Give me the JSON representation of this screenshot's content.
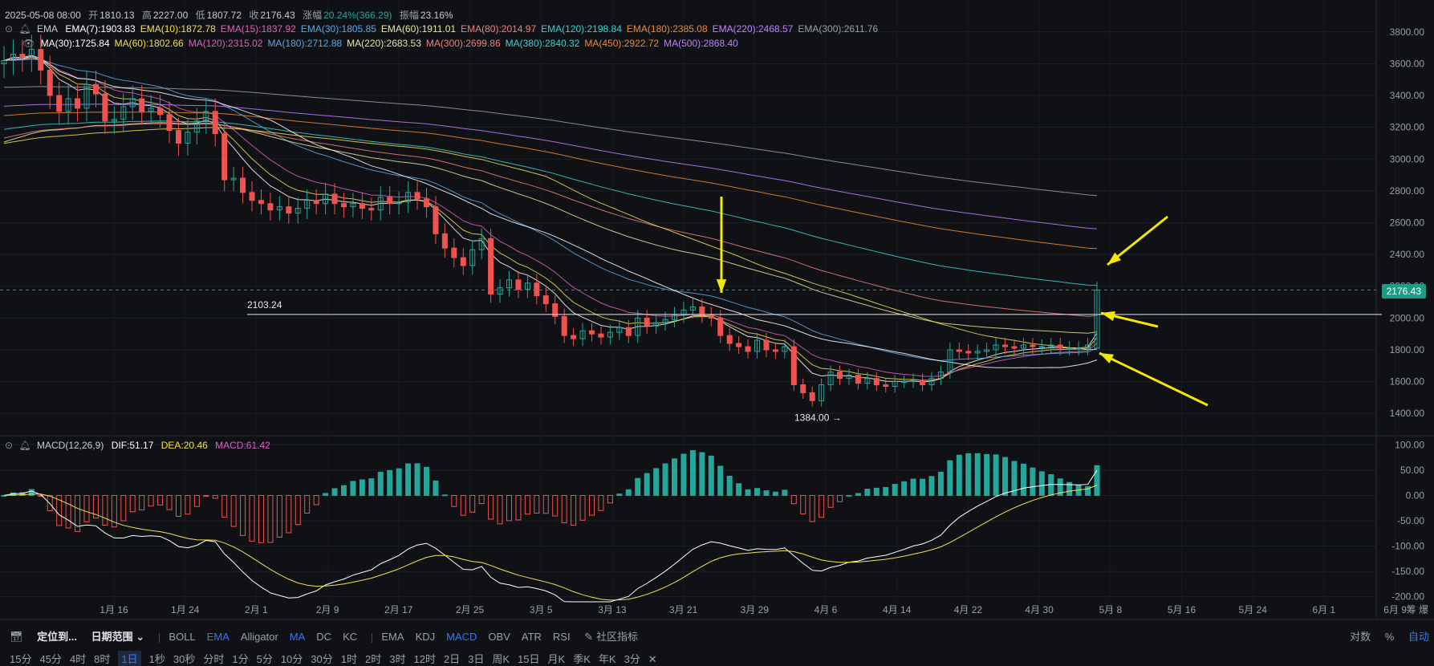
{
  "header": {
    "date": "2025-05-08 08:00",
    "open_label": "开",
    "open": "1810.13",
    "high_label": "高",
    "high": "2227.00",
    "low_label": "低",
    "low": "1807.72",
    "close_label": "收",
    "close": "2176.43",
    "change_label": "涨幅",
    "change": "20.24%(366.29)",
    "amp_label": "振幅",
    "amp": "23.16%"
  },
  "ema_legend": {
    "title": "EMA",
    "items": [
      {
        "label": "EMA(7):1903.83",
        "color": "#ffffff"
      },
      {
        "label": "EMA(10):1872.78",
        "color": "#f5e050"
      },
      {
        "label": "EMA(15):1837.92",
        "color": "#e060c0"
      },
      {
        "label": "EMA(30):1805.85",
        "color": "#5aa8e8"
      },
      {
        "label": "EMA(60):1911.01",
        "color": "#e8e8a0"
      },
      {
        "label": "EMA(80):2014.97",
        "color": "#f08080"
      },
      {
        "label": "EMA(120):2198.84",
        "color": "#40d0d0"
      },
      {
        "label": "EMA(180):2385.08",
        "color": "#f08a30"
      },
      {
        "label": "EMA(220):2468.57",
        "color": "#c080ff"
      },
      {
        "label": "EMA(300):2611.76",
        "color": "#9aa0a8"
      }
    ]
  },
  "ma_legend": {
    "title": "MA",
    "items": [
      {
        "label": "MA(30):1725.84",
        "color": "#ffffff"
      },
      {
        "label": "MA(60):1802.66",
        "color": "#f5e050"
      },
      {
        "label": "MA(120):2315.02",
        "color": "#e060c0"
      },
      {
        "label": "MA(180):2712.88",
        "color": "#5aa8e8"
      },
      {
        "label": "MA(220):2683.53",
        "color": "#e8e8a0"
      },
      {
        "label": "MA(300):2699.86",
        "color": "#f08080"
      },
      {
        "label": "MA(380):2840.32",
        "color": "#40d0d0"
      },
      {
        "label": "MA(450):2922.72",
        "color": "#f08a30"
      },
      {
        "label": "MA(500):2868.40",
        "color": "#c080ff"
      }
    ]
  },
  "macd_legend": {
    "title": "MACD(12,26,9)",
    "dif": "DIF:51.17",
    "dea": "DEA:20.46",
    "macd": "MACD:61.42"
  },
  "price_axis": [
    "3800.00",
    "3600.00",
    "3400.00",
    "3200.00",
    "3000.00",
    "2800.00",
    "2600.00",
    "2400.00",
    "2200.00",
    "2000.00",
    "1800.00",
    "1600.00",
    "1400.00"
  ],
  "macd_axis": [
    "100.00",
    "50.00",
    "0.00",
    "-50.00",
    "-100.00",
    "-150.00",
    "-200.00"
  ],
  "date_axis": [
    "1月 16",
    "1月 24",
    "2月 1",
    "2月 9",
    "2月 17",
    "2月 25",
    "3月 5",
    "3月 13",
    "3月 21",
    "3月 29",
    "4月 6",
    "4月 14",
    "4月 22",
    "4月 30",
    "5月 8",
    "5月 16",
    "5月 24",
    "6月 1",
    "6月 9"
  ],
  "date_axis_right": "筹 爆",
  "current_price": "2176.43",
  "annotations": {
    "level_line": "2103.24",
    "low_marker": "1384.00 →"
  },
  "toolbar1": {
    "locate": "定位到...",
    "date_range": "日期范围",
    "overlays": [
      "BOLL",
      "EMA",
      "Alligator",
      "MA",
      "DC",
      "KC"
    ],
    "overlays_active": [
      "EMA",
      "MA"
    ],
    "indicators": [
      "EMA",
      "KDJ",
      "MACD",
      "OBV",
      "ATR",
      "RSI"
    ],
    "indicators_active": [
      "MACD"
    ],
    "community": "社区指标",
    "right": [
      "对数",
      "%",
      "自动"
    ]
  },
  "toolbar2": {
    "intervals": [
      "15分",
      "45分",
      "4时",
      "8时",
      "1日",
      "1秒",
      "30秒",
      "分时",
      "1分",
      "5分",
      "10分",
      "30分",
      "1时",
      "2时",
      "3时",
      "12时",
      "2日",
      "3日",
      "周K",
      "15日",
      "月K",
      "季K",
      "年K",
      "3分"
    ],
    "active": "1日"
  },
  "chart_data": {
    "type": "candlestick",
    "dates": [
      "1月9",
      "1月10",
      "1月11",
      "1月12",
      "1月13",
      "1月14",
      "1月15",
      "1月16",
      "1月17",
      "1月18",
      "1月19",
      "1月20",
      "1月21",
      "1月22",
      "1月23",
      "1月24",
      "1月25",
      "1月26",
      "1月27",
      "1月28",
      "1月29",
      "1月30",
      "1月31",
      "2月1",
      "2月2",
      "2月3",
      "2月4",
      "2月5",
      "2月6",
      "2月7",
      "2月8",
      "2月9",
      "2月10",
      "2月11",
      "2月12",
      "2月13",
      "2月14",
      "2月15",
      "2月16",
      "2月17",
      "2月18",
      "2月19",
      "2月20",
      "2月21",
      "2月22",
      "2月23",
      "2月24",
      "2月25",
      "2月26",
      "2月27",
      "2月28",
      "3月1",
      "3月2",
      "3月3",
      "3月4",
      "3月5",
      "3月6",
      "3月7",
      "3月8",
      "3月9",
      "3月10",
      "3月11",
      "3月12",
      "3月13",
      "3月14",
      "3月15",
      "3月16",
      "3月17",
      "3月18",
      "3月19",
      "3月20",
      "3月21",
      "3月22",
      "3月23",
      "3月24",
      "3月25",
      "3月26",
      "3月27",
      "3月28",
      "3月29",
      "3月30",
      "3月31",
      "4月1",
      "4月2",
      "4月3",
      "4月4",
      "4月5",
      "4月6",
      "4月7",
      "4月8",
      "4月9",
      "4月10",
      "4月11",
      "4月12",
      "4月13",
      "4月14",
      "4月15",
      "4月16",
      "4月17",
      "4月18",
      "4月19",
      "4月20",
      "4月21",
      "4月22",
      "4月23",
      "4月24",
      "4月25",
      "4月26",
      "4月27",
      "4月28",
      "4月29",
      "4月30",
      "5月1",
      "5月2",
      "5月3",
      "5月4",
      "5月5",
      "5月6",
      "5月7",
      "5月8"
    ],
    "close": [
      3620,
      3660,
      3640,
      3690,
      3560,
      3400,
      3300,
      3380,
      3320,
      3470,
      3410,
      3240,
      3250,
      3330,
      3380,
      3300,
      3320,
      3280,
      3180,
      3100,
      3170,
      3240,
      3300,
      3160,
      2870,
      2880,
      2790,
      2740,
      2720,
      2680,
      2700,
      2660,
      2690,
      2740,
      2720,
      2780,
      2720,
      2700,
      2720,
      2690,
      2680,
      2760,
      2720,
      2730,
      2790,
      2750,
      2700,
      2530,
      2440,
      2380,
      2330,
      2430,
      2500,
      2150,
      2190,
      2240,
      2180,
      2220,
      2140,
      2090,
      2010,
      1890,
      1870,
      1920,
      1900,
      1880,
      1910,
      1940,
      1890,
      2000,
      1950,
      1970,
      1990,
      2020,
      2050,
      2070,
      2020,
      2000,
      1890,
      1840,
      1820,
      1790,
      1860,
      1800,
      1790,
      1820,
      1580,
      1530,
      1480,
      1580,
      1660,
      1620,
      1640,
      1590,
      1620,
      1580,
      1570,
      1600,
      1600,
      1610,
      1580,
      1620,
      1660,
      1800,
      1790,
      1780,
      1790,
      1800,
      1830,
      1820,
      1810,
      1830,
      1820,
      1820,
      1830,
      1810,
      1810,
      1810,
      1830,
      2176
    ],
    "open": [
      3600,
      3620,
      3660,
      3640,
      3690,
      3560,
      3400,
      3300,
      3380,
      3320,
      3470,
      3410,
      3240,
      3250,
      3330,
      3380,
      3300,
      3320,
      3280,
      3180,
      3100,
      3170,
      3240,
      3300,
      3160,
      2870,
      2880,
      2790,
      2740,
      2720,
      2680,
      2700,
      2660,
      2690,
      2740,
      2720,
      2780,
      2720,
      2700,
      2720,
      2690,
      2680,
      2760,
      2720,
      2730,
      2790,
      2750,
      2700,
      2530,
      2440,
      2380,
      2330,
      2430,
      2500,
      2150,
      2190,
      2240,
      2180,
      2220,
      2140,
      2090,
      2010,
      1890,
      1870,
      1920,
      1900,
      1880,
      1910,
      1940,
      1890,
      2000,
      1950,
      1970,
      1990,
      2020,
      2050,
      2070,
      2020,
      2000,
      1890,
      1840,
      1820,
      1790,
      1860,
      1800,
      1790,
      1820,
      1580,
      1530,
      1480,
      1580,
      1660,
      1620,
      1640,
      1590,
      1620,
      1580,
      1570,
      1600,
      1600,
      1610,
      1580,
      1620,
      1660,
      1800,
      1790,
      1780,
      1790,
      1800,
      1830,
      1820,
      1810,
      1830,
      1820,
      1820,
      1830,
      1810,
      1810,
      1810,
      1810
    ],
    "high_of_last": 2227.0,
    "low_of_last": 1807.72,
    "notable_low": 1384.0,
    "horizontal_level": 2103.24,
    "ylim": [
      1300,
      3900
    ],
    "macd": {
      "dif_last": 51.17,
      "dea_last": 20.46,
      "hist_last": 61.42,
      "ylim": [
        -210,
        110
      ]
    }
  }
}
